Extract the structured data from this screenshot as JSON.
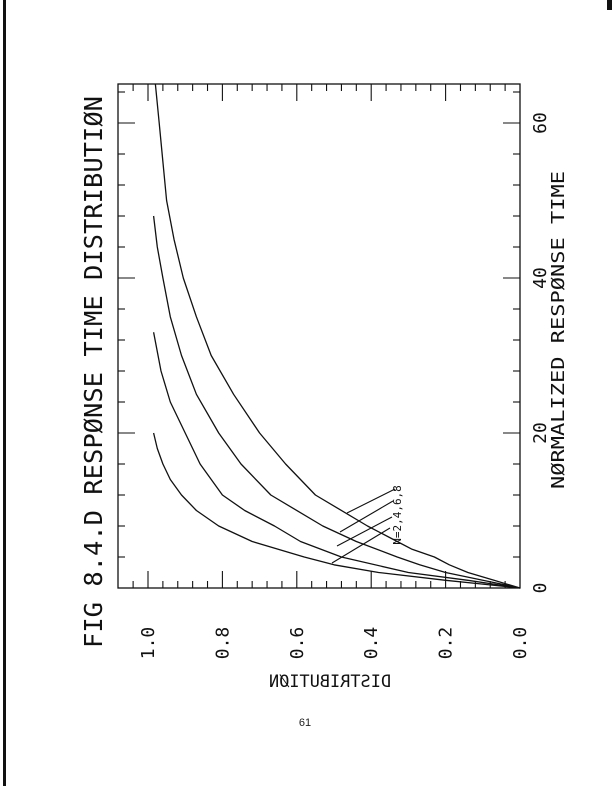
{
  "page_number": "61",
  "chart_data": {
    "type": "line",
    "title": "FIG 8.4.D RESPØNSE TIME DISTRIBUTIØN",
    "xlabel": "NØRMALIZED RESPØNSE TIME",
    "ylabel": "DISTRIBUTIØN",
    "orientation": "rotated 90 degrees (page landscape)",
    "xlim": [
      0,
      65
    ],
    "ylim": [
      0,
      1.08
    ],
    "x_ticks": [
      "0",
      "20",
      "40",
      "60"
    ],
    "y_ticks": [
      "0.0",
      "0.2",
      "0.4",
      "0.6",
      "0.8",
      "1.0"
    ],
    "grid": false,
    "annotation": "N=2,4,6,8",
    "colors": {
      "line": "#111111",
      "background": "#ffffff"
    },
    "series": [
      {
        "N": 2,
        "points": [
          [
            0,
            0
          ],
          [
            0.5,
            0.1
          ],
          [
            1,
            0.2
          ],
          [
            2,
            0.38
          ],
          [
            3,
            0.5
          ],
          [
            4,
            0.58
          ],
          [
            6,
            0.72
          ],
          [
            8,
            0.81
          ],
          [
            10,
            0.87
          ],
          [
            12,
            0.91
          ],
          [
            14,
            0.94
          ],
          [
            16,
            0.96
          ],
          [
            18,
            0.975
          ],
          [
            20,
            0.985
          ]
        ]
      },
      {
        "N": 4,
        "points": [
          [
            0,
            0
          ],
          [
            1,
            0.14
          ],
          [
            2,
            0.3
          ],
          [
            4,
            0.48
          ],
          [
            6,
            0.59
          ],
          [
            8,
            0.66
          ],
          [
            10,
            0.74
          ],
          [
            12,
            0.8
          ],
          [
            16,
            0.86
          ],
          [
            20,
            0.9
          ],
          [
            24,
            0.94
          ],
          [
            28,
            0.965
          ],
          [
            33,
            0.985
          ]
        ]
      },
      {
        "N": 6,
        "points": [
          [
            0,
            0
          ],
          [
            1,
            0.1
          ],
          [
            2,
            0.2
          ],
          [
            3,
            0.27
          ],
          [
            4,
            0.33
          ],
          [
            6,
            0.44
          ],
          [
            8,
            0.53
          ],
          [
            12,
            0.67
          ],
          [
            16,
            0.75
          ],
          [
            20,
            0.81
          ],
          [
            25,
            0.87
          ],
          [
            30,
            0.91
          ],
          [
            35,
            0.94
          ],
          [
            40,
            0.96
          ],
          [
            44,
            0.975
          ],
          [
            48,
            0.985
          ]
        ]
      },
      {
        "N": 8,
        "points": [
          [
            0,
            0
          ],
          [
            1,
            0.07
          ],
          [
            2,
            0.14
          ],
          [
            3,
            0.19
          ],
          [
            4,
            0.23
          ],
          [
            5,
            0.29
          ],
          [
            6,
            0.33
          ],
          [
            8,
            0.41
          ],
          [
            12,
            0.55
          ],
          [
            16,
            0.63
          ],
          [
            20,
            0.7
          ],
          [
            25,
            0.77
          ],
          [
            30,
            0.83
          ],
          [
            35,
            0.87
          ],
          [
            40,
            0.905
          ],
          [
            45,
            0.93
          ],
          [
            50,
            0.95
          ],
          [
            55,
            0.96
          ],
          [
            60,
            0.97
          ],
          [
            65,
            0.98
          ]
        ]
      }
    ]
  }
}
